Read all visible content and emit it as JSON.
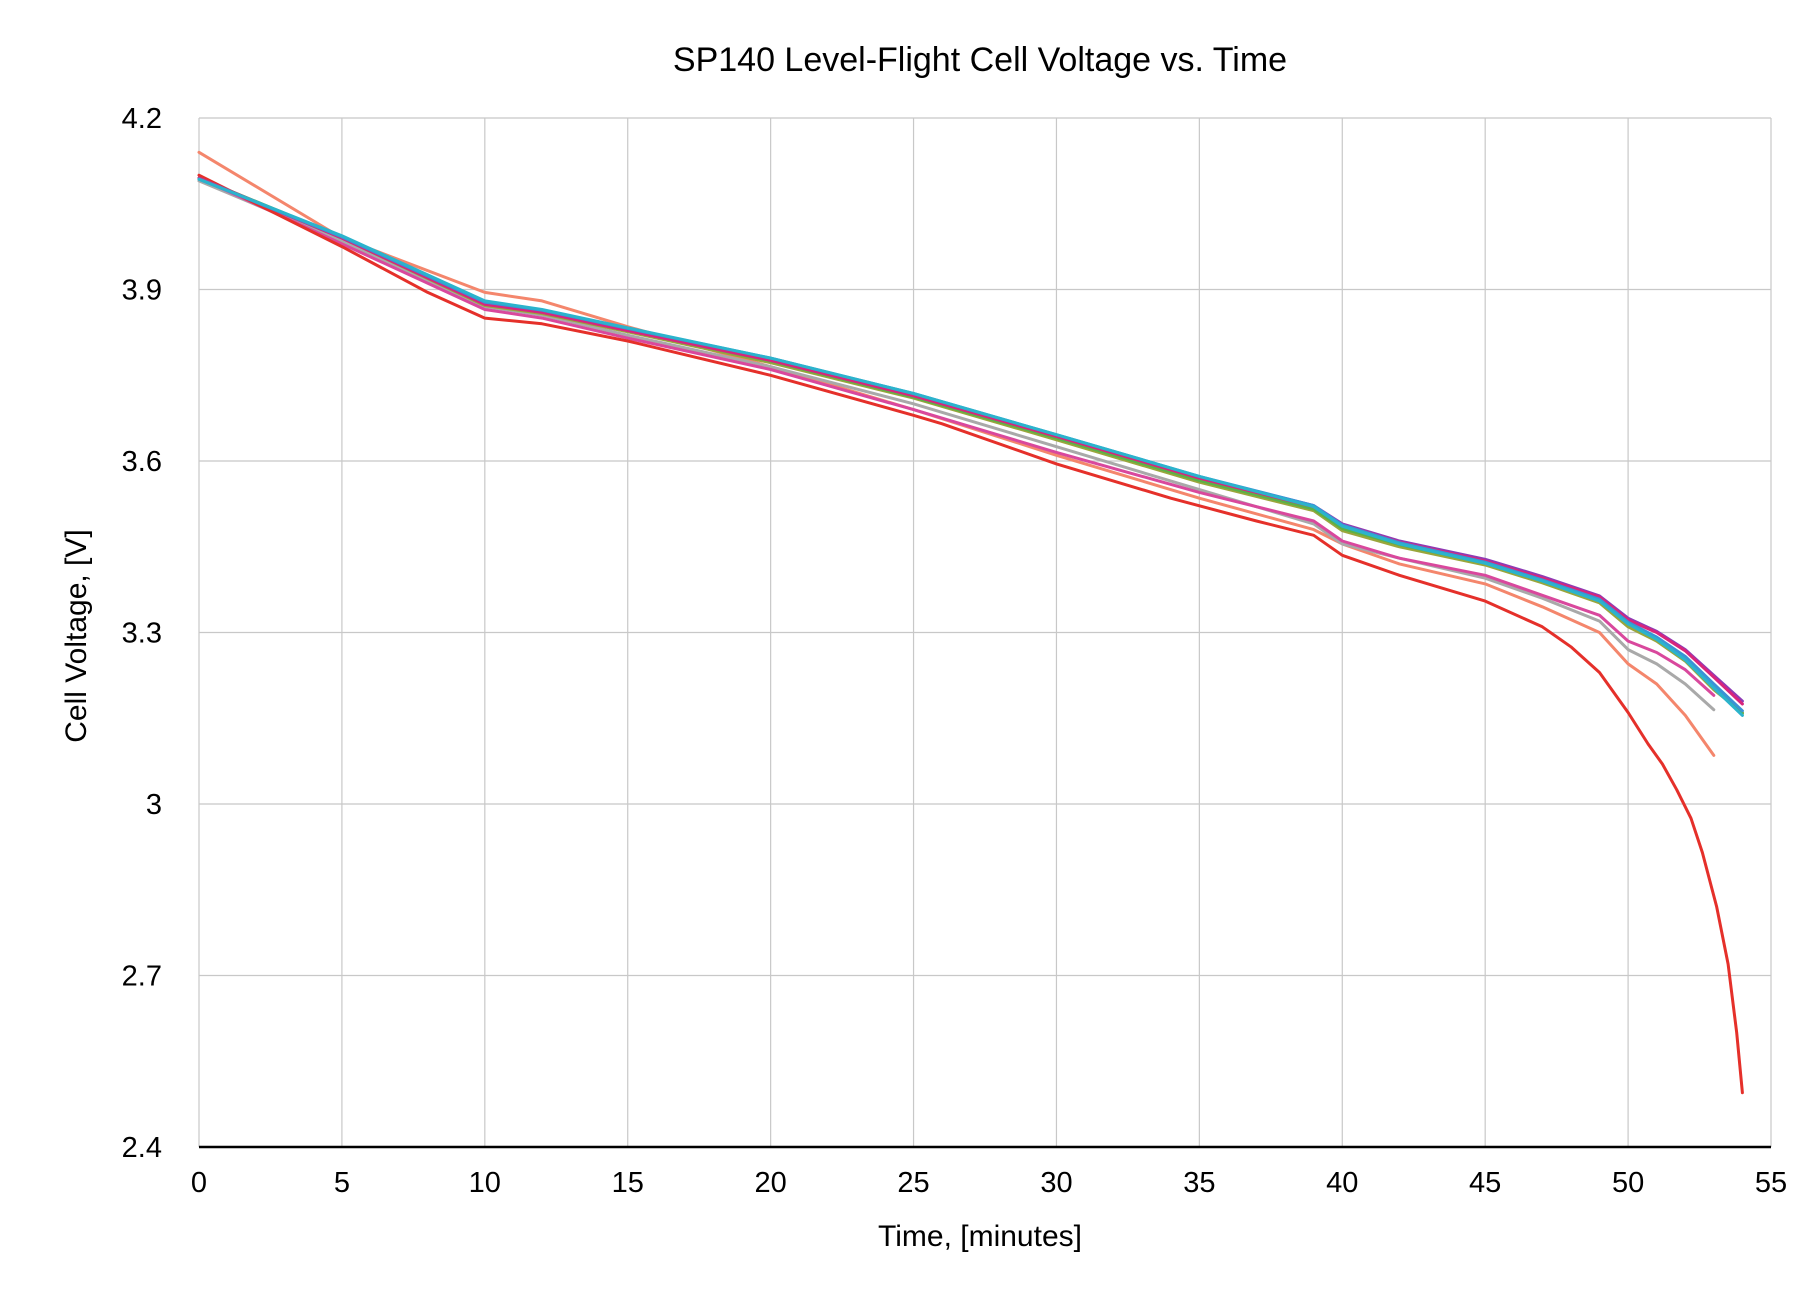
{
  "chart_data": {
    "type": "line",
    "title": "SP140 Level-Flight Cell Voltage vs. Time",
    "xlabel": "Time, [minutes]",
    "ylabel": "Cell Voltage, [V]",
    "xlim": [
      0,
      55
    ],
    "ylim": [
      2.4,
      4.2
    ],
    "xticks": [
      0,
      5,
      10,
      15,
      20,
      25,
      30,
      35,
      40,
      45,
      50,
      55
    ],
    "yticks": [
      2.4,
      2.7,
      3,
      3.3,
      3.6,
      3.9,
      4.2
    ],
    "ytick_labels": [
      "2.4",
      "2.7",
      "3",
      "3.3",
      "3.6",
      "3.9",
      "4.2"
    ],
    "xtick_labels": [
      "0",
      "5",
      "10",
      "15",
      "20",
      "25",
      "30",
      "35",
      "40",
      "45",
      "50",
      "55"
    ],
    "grid": true,
    "legend": "none",
    "series": [
      {
        "color": "#f4866c",
        "x": [
          0,
          5,
          10,
          12,
          15,
          20,
          25,
          30,
          35,
          39,
          40,
          42,
          45,
          47,
          49,
          50,
          51,
          52,
          53
        ],
        "values": [
          4.14,
          3.99,
          3.895,
          3.88,
          3.835,
          3.765,
          3.69,
          3.61,
          3.535,
          3.48,
          3.455,
          3.42,
          3.385,
          3.345,
          3.3,
          3.245,
          3.21,
          3.155,
          3.085
        ]
      },
      {
        "color": "#a9a9a9",
        "x": [
          0,
          5,
          10,
          12,
          15,
          20,
          25,
          30,
          35,
          39,
          40,
          42,
          45,
          47,
          49,
          50,
          51,
          52,
          53
        ],
        "values": [
          4.09,
          3.985,
          3.87,
          3.855,
          3.82,
          3.765,
          3.7,
          3.625,
          3.55,
          3.49,
          3.455,
          3.43,
          3.395,
          3.36,
          3.32,
          3.27,
          3.245,
          3.21,
          3.165
        ]
      },
      {
        "color": "#d9489d",
        "x": [
          0,
          5,
          10,
          12,
          15,
          20,
          25,
          30,
          35,
          39,
          40,
          42,
          45,
          47,
          49,
          50,
          51,
          52,
          53
        ],
        "values": [
          4.095,
          3.98,
          3.865,
          3.85,
          3.815,
          3.76,
          3.69,
          3.615,
          3.545,
          3.495,
          3.46,
          3.43,
          3.4,
          3.365,
          3.33,
          3.285,
          3.265,
          3.235,
          3.19
        ]
      },
      {
        "color": "#e5302a",
        "x": [
          0,
          5,
          8,
          10,
          12,
          15,
          20,
          25,
          26,
          30,
          34,
          37,
          39,
          40,
          42,
          45,
          47,
          48,
          49,
          50,
          50.7,
          51.2,
          51.7,
          52.2,
          52.6,
          53.1,
          53.5,
          53.8,
          54
        ],
        "values": [
          4.1,
          3.975,
          3.895,
          3.85,
          3.84,
          3.81,
          3.75,
          3.68,
          3.665,
          3.595,
          3.535,
          3.495,
          3.47,
          3.435,
          3.4,
          3.355,
          3.31,
          3.275,
          3.23,
          3.16,
          3.105,
          3.07,
          3.025,
          2.975,
          2.915,
          2.82,
          2.72,
          2.6,
          2.495
        ]
      },
      {
        "color": "#9aa63c",
        "x": [
          0,
          5,
          10,
          12,
          15,
          20,
          25,
          30,
          35,
          39,
          40,
          42,
          45,
          47,
          49,
          50,
          51,
          52,
          53,
          54
        ],
        "values": [
          4.095,
          3.99,
          3.872,
          3.858,
          3.826,
          3.772,
          3.71,
          3.637,
          3.563,
          3.513,
          3.478,
          3.45,
          3.418,
          3.387,
          3.352,
          3.31,
          3.285,
          3.25,
          3.2,
          3.16
        ]
      },
      {
        "color": "#5ab248",
        "x": [
          0,
          5,
          10,
          12,
          15,
          20,
          25,
          30,
          35,
          39,
          40,
          42,
          45,
          47,
          49,
          50,
          51,
          52,
          53,
          54
        ],
        "values": [
          4.095,
          3.992,
          3.876,
          3.86,
          3.828,
          3.775,
          3.712,
          3.64,
          3.566,
          3.516,
          3.482,
          3.454,
          3.421,
          3.39,
          3.356,
          3.315,
          3.29,
          3.254,
          3.205,
          3.158
        ]
      },
      {
        "color": "#8e3bb5",
        "x": [
          0,
          5,
          10,
          12,
          15,
          20,
          25,
          30,
          35,
          39,
          40,
          42,
          45,
          47,
          49,
          50,
          51,
          52,
          53,
          54
        ],
        "values": [
          4.095,
          3.99,
          3.875,
          3.862,
          3.83,
          3.778,
          3.716,
          3.645,
          3.572,
          3.522,
          3.49,
          3.46,
          3.428,
          3.398,
          3.364,
          3.325,
          3.302,
          3.27,
          3.225,
          3.18
        ]
      },
      {
        "color": "#d8257c",
        "x": [
          0,
          5,
          10,
          12,
          15,
          20,
          25,
          30,
          35,
          39,
          40,
          42,
          45,
          47,
          49,
          50,
          51,
          52,
          53,
          54
        ],
        "values": [
          4.095,
          3.99,
          3.874,
          3.86,
          3.828,
          3.776,
          3.714,
          3.643,
          3.57,
          3.52,
          3.488,
          3.458,
          3.425,
          3.395,
          3.362,
          3.322,
          3.3,
          3.268,
          3.222,
          3.175
        ]
      },
      {
        "color": "#3a93d6",
        "x": [
          0,
          5,
          10,
          12,
          15,
          20,
          25,
          30,
          35,
          39,
          40,
          42,
          45,
          47,
          49,
          50,
          51,
          52,
          53,
          54
        ],
        "values": [
          4.093,
          3.992,
          3.878,
          3.864,
          3.832,
          3.78,
          3.718,
          3.646,
          3.573,
          3.522,
          3.488,
          3.457,
          3.423,
          3.392,
          3.358,
          3.318,
          3.292,
          3.258,
          3.21,
          3.163
        ]
      },
      {
        "color": "#2bb3cc",
        "x": [
          0,
          5,
          10,
          12,
          15,
          20,
          25,
          30,
          35,
          39,
          40,
          42,
          45,
          47,
          49,
          50,
          51,
          52,
          53,
          54
        ],
        "values": [
          4.093,
          3.994,
          3.88,
          3.865,
          3.833,
          3.78,
          3.718,
          3.646,
          3.573,
          3.52,
          3.486,
          3.455,
          3.421,
          3.39,
          3.355,
          3.315,
          3.288,
          3.252,
          3.203,
          3.155
        ]
      }
    ]
  }
}
